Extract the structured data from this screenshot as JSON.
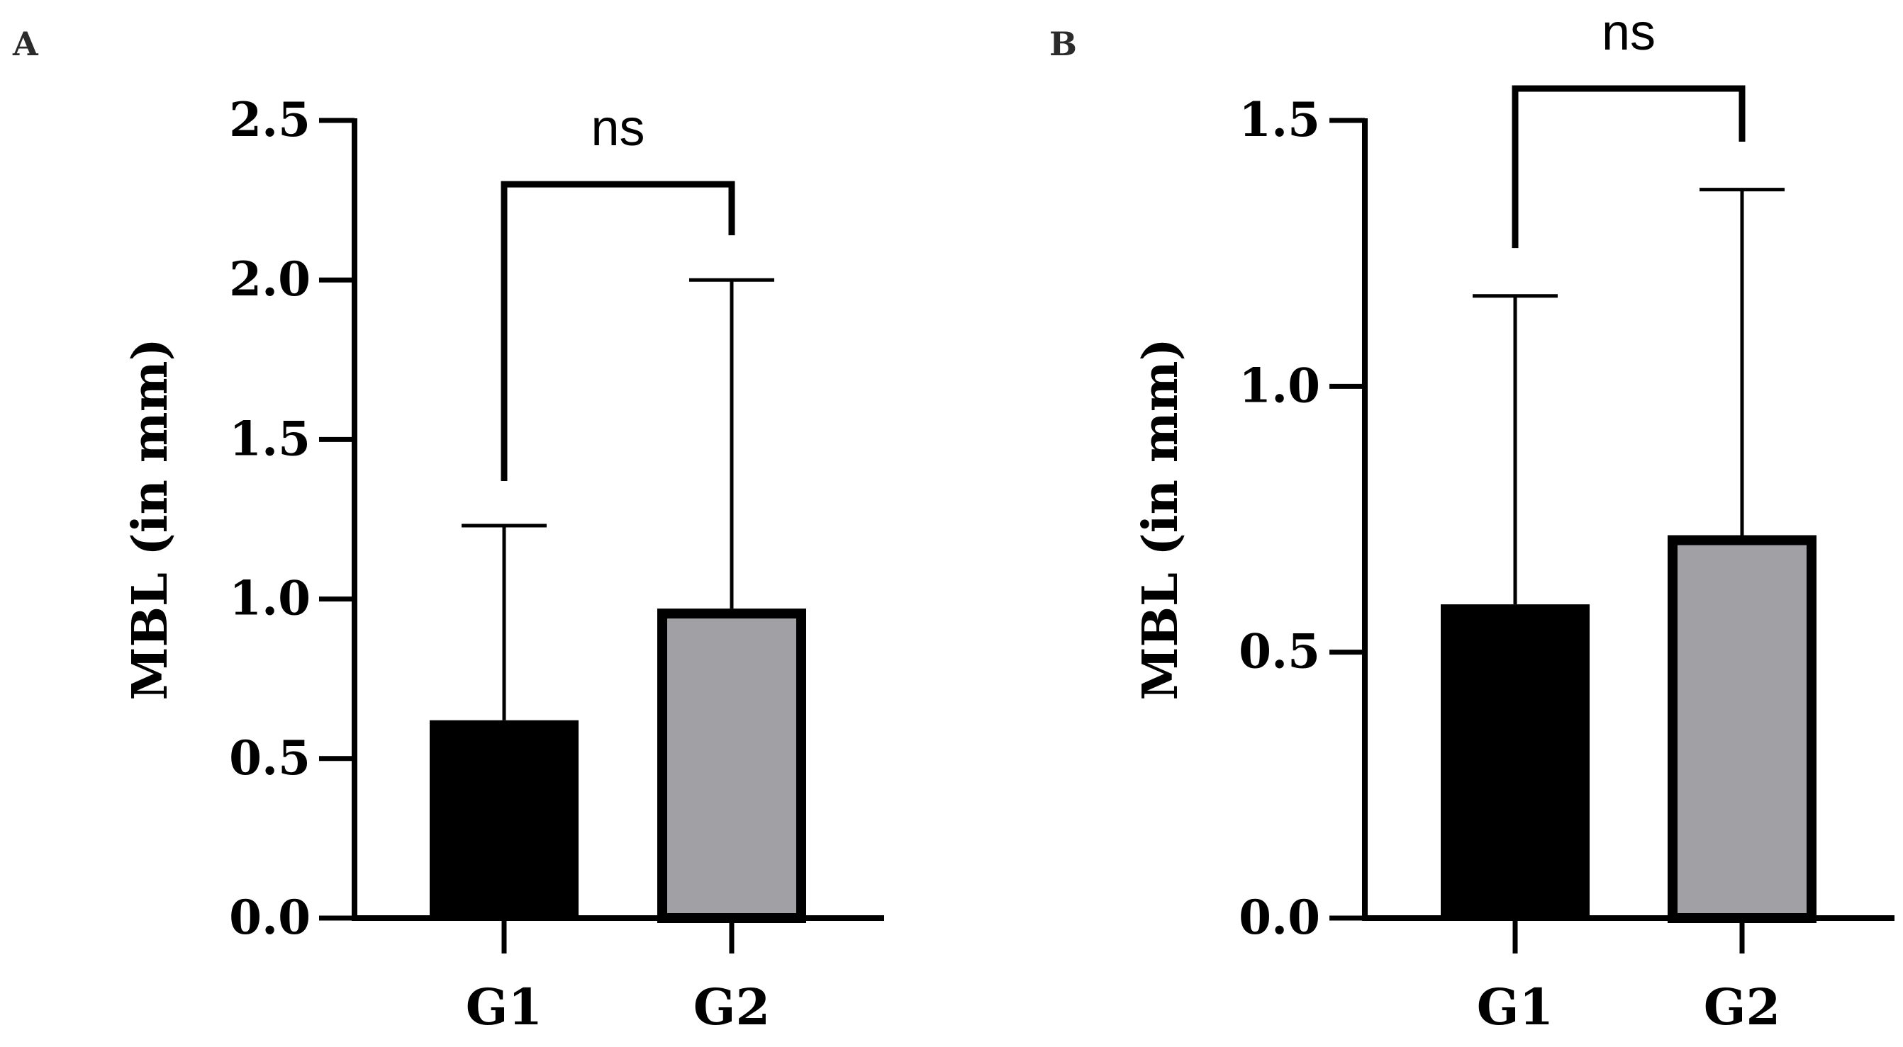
{
  "chart_data": [
    {
      "panel": "A",
      "type": "bar",
      "categories": [
        "G1",
        "G2"
      ],
      "values": [
        0.62,
        0.97
      ],
      "errors": [
        0.61,
        1.03
      ],
      "colors": [
        "#000000",
        "#a1a0a5"
      ],
      "ylabel": "MBL (in mm)",
      "xlabel": "",
      "ylim": [
        0,
        2.5
      ],
      "yticks": [
        0.0,
        0.5,
        1.0,
        1.5,
        2.0,
        2.5
      ],
      "ytick_labels": [
        "0.0",
        "0.5",
        "1.0",
        "1.5",
        "2.0",
        "2.5"
      ],
      "grid": false,
      "significance": {
        "label": "ns",
        "bracket_left_y": 1.37,
        "bracket_right_y": 2.14,
        "bracket_top_y": 2.3
      }
    },
    {
      "panel": "B",
      "type": "bar",
      "categories": [
        "G1",
        "G2"
      ],
      "values": [
        0.59,
        0.72
      ],
      "errors": [
        0.58,
        0.65
      ],
      "colors": [
        "#000000",
        "#a1a0a5"
      ],
      "ylabel": "MBL (in mm)",
      "xlabel": "",
      "ylim": [
        0,
        1.5
      ],
      "yticks": [
        0.0,
        0.5,
        1.0,
        1.5
      ],
      "ytick_labels": [
        "0.0",
        "0.5",
        "1.0",
        "1.5"
      ],
      "grid": false,
      "significance": {
        "label": "ns",
        "bracket_left_y": 1.26,
        "bracket_right_y": 1.46,
        "bracket_top_y": 1.56
      }
    }
  ]
}
